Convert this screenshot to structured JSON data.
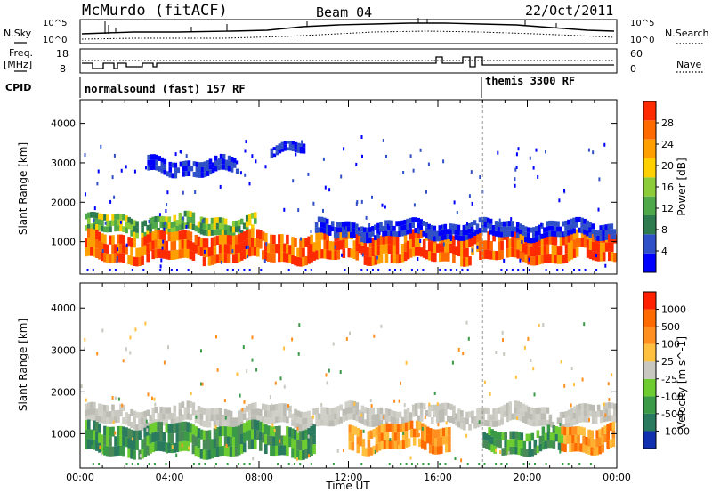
{
  "header": {
    "station": "McMurdo (fitACF)",
    "beam": "Beam 04",
    "date": "22/Oct/2011"
  },
  "strip_labels": {
    "nsky": "N.Sky",
    "nsearch": "N.Search",
    "freq": "Freq.",
    "freq_unit": "[MHz]",
    "nave": "Nave",
    "cpid": "CPID",
    "nsky_ticks": [
      "10^5",
      "10^0"
    ],
    "nsearch_ticks": [
      "10^5",
      "10^0"
    ],
    "freq_ticks": [
      "18",
      "8"
    ],
    "nave_ticks": [
      "60",
      "0"
    ]
  },
  "cpid_modes": [
    {
      "label": "normalsound (fast) 157 RF",
      "start_hour": 0
    },
    {
      "label": "themis 3300 RF",
      "start_hour": 18
    }
  ],
  "chart_data": [
    {
      "type": "heatmap",
      "name": "power",
      "xlabel": "",
      "ylabel": "Slant Range [km]",
      "xlim": [
        0,
        24
      ],
      "ylim": [
        180,
        4600
      ],
      "yticks": [
        1000,
        2000,
        3000,
        4000
      ],
      "colorbar": {
        "label": "Power [dB]",
        "ticks": [
          "28",
          "24",
          "20",
          "16",
          "12",
          "8",
          "4"
        ],
        "colors": [
          "#0000ff",
          "#3050c8",
          "#2e7b50",
          "#4fa84a",
          "#8ccc38",
          "#ffd000",
          "#ffa000",
          "#ff6a00",
          "#ff2a00"
        ]
      },
      "bands": [
        {
          "x_start": 0.2,
          "x_end": 7.8,
          "y_from": 1200,
          "y_to": 1650,
          "level": "mid"
        },
        {
          "x_start": 0.2,
          "x_end": 23.9,
          "y_from": 500,
          "y_to": 1200,
          "level": "high"
        },
        {
          "x_start": 10.5,
          "x_end": 23.9,
          "y_from": 1100,
          "y_to": 1500,
          "level": "low"
        },
        {
          "x_start": 3.0,
          "x_end": 7.0,
          "y_from": 2700,
          "y_to": 3100,
          "level": "low"
        },
        {
          "x_start": 8.5,
          "x_end": 10.0,
          "y_from": 3200,
          "y_to": 3450,
          "level": "low"
        }
      ]
    },
    {
      "type": "heatmap",
      "name": "velocity",
      "xlabel": "Time UT",
      "ylabel": "Slant Range [km]",
      "xlim": [
        0,
        24
      ],
      "ylim": [
        180,
        4600
      ],
      "xtick_labels": [
        "00:00",
        "04:00",
        "08:00",
        "12:00",
        "16:00",
        "20:00",
        "00:00"
      ],
      "yticks": [
        1000,
        2000,
        3000,
        4000
      ],
      "colorbar": {
        "label": "Velocity [m s^-1]",
        "ticks": [
          "1000",
          "500",
          "100",
          "25",
          "-25",
          "-100",
          "-500",
          "-1000"
        ],
        "colors": [
          "#1030b0",
          "#2a7a60",
          "#3a9a48",
          "#6ccc30",
          "#c8c8c0",
          "#ffc040",
          "#ff9020",
          "#ff6a00",
          "#ff2000"
        ]
      },
      "bands": [
        {
          "x_start": 0.2,
          "x_end": 23.9,
          "y_from": 1200,
          "y_to": 1650,
          "level": "grey"
        },
        {
          "x_start": 0.2,
          "x_end": 10.5,
          "y_from": 500,
          "y_to": 1200,
          "level": "green"
        },
        {
          "x_start": 12.0,
          "x_end": 16.5,
          "y_from": 600,
          "y_to": 1200,
          "level": "orange"
        },
        {
          "x_start": 18.0,
          "x_end": 21.5,
          "y_from": 550,
          "y_to": 1100,
          "level": "green"
        },
        {
          "x_start": 21.5,
          "x_end": 23.9,
          "y_from": 600,
          "y_to": 1200,
          "level": "orange"
        }
      ]
    }
  ],
  "time_axis_label": "Time UT"
}
